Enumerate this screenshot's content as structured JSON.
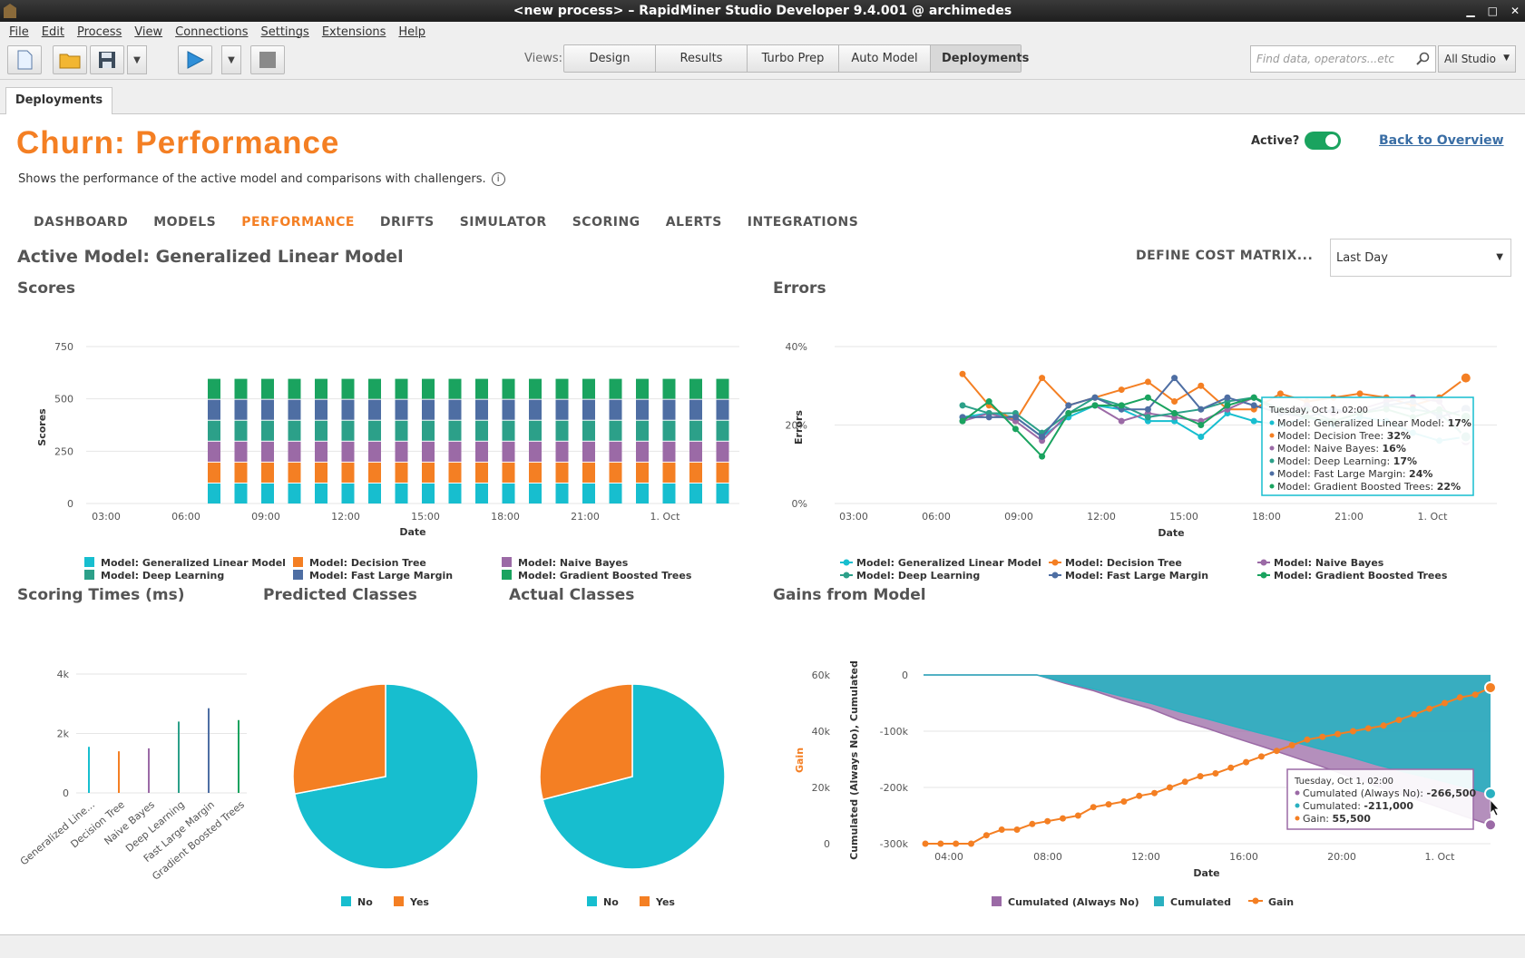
{
  "window": {
    "title": "<new process> – RapidMiner Studio Developer 9.4.001 @ archimedes"
  },
  "menu": [
    "File",
    "Edit",
    "Process",
    "View",
    "Connections",
    "Settings",
    "Extensions",
    "Help"
  ],
  "views": {
    "label": "Views:",
    "items": [
      "Design",
      "Results",
      "Turbo Prep",
      "Auto Model",
      "Deployments"
    ],
    "active": "Deployments"
  },
  "search": {
    "placeholder": "Find data, operators...etc",
    "scope": "All Studio"
  },
  "tab": {
    "label": "Deployments"
  },
  "page": {
    "title": "Churn: Performance",
    "subtitle": "Shows the performance of the active model and comparisons with challengers.",
    "active_label": "Active?",
    "active": true,
    "back_link": "Back to Overview"
  },
  "nav": [
    "DASHBOARD",
    "MODELS",
    "PERFORMANCE",
    "DRIFTS",
    "SIMULATOR",
    "SCORING",
    "ALERTS",
    "INTEGRATIONS"
  ],
  "nav_active": "PERFORMANCE",
  "active_model": "Active Model: Generalized Linear Model",
  "cost_matrix": "DEFINE COST MATRIX...",
  "time_range": "Last Day",
  "colors": {
    "glm": "#17becf",
    "dt": "#f47f23",
    "nb": "#9b6aa6",
    "dl": "#2ca089",
    "flm": "#4e6ea3",
    "gbt": "#1aa35f",
    "teal": "#2ab0c0",
    "purple": "#9b6aa6",
    "accent": "#f47f23"
  },
  "series_names": [
    "Model: Generalized Linear Model",
    "Model: Decision Tree",
    "Model: Naive Bayes",
    "Model: Deep Learning",
    "Model: Fast Large Margin",
    "Model: Gradient Boosted Trees"
  ],
  "chart_data": [
    {
      "id": "scores",
      "type": "bar",
      "title": "Scores",
      "xlabel": "Date",
      "ylabel": "Scores",
      "ylim": [
        0,
        750
      ],
      "yticks": [
        "0",
        "250",
        "500",
        "750"
      ],
      "xticks": [
        "03:00",
        "06:00",
        "09:00",
        "12:00",
        "15:00",
        "18:00",
        "21:00",
        "1. Oct"
      ],
      "stacked": true,
      "bars": 20,
      "series": [
        {
          "name": "Model: Generalized Linear Model",
          "value": 100
        },
        {
          "name": "Model: Decision Tree",
          "value": 100
        },
        {
          "name": "Model: Naive Bayes",
          "value": 100
        },
        {
          "name": "Model: Deep Learning",
          "value": 100
        },
        {
          "name": "Model: Fast Large Margin",
          "value": 100
        },
        {
          "name": "Model: Gradient Boosted Trees",
          "value": 100
        }
      ]
    },
    {
      "id": "errors",
      "type": "line",
      "title": "Errors",
      "xlabel": "Date",
      "ylabel": "Errors",
      "yticks": [
        "0%",
        "20%",
        "40%"
      ],
      "xticks": [
        "03:00",
        "06:00",
        "09:00",
        "12:00",
        "15:00",
        "18:00",
        "21:00",
        "1. Oct"
      ],
      "series": [
        {
          "name": "Model: Generalized Linear Model",
          "values": [
            22,
            23,
            22,
            17,
            22,
            25,
            24,
            21,
            21,
            17,
            23,
            21,
            20,
            22,
            20,
            22,
            21,
            18,
            16,
            17
          ]
        },
        {
          "name": "Model: Decision Tree",
          "values": [
            33,
            25,
            21,
            32,
            25,
            27,
            29,
            31,
            26,
            30,
            24,
            24,
            28,
            26,
            27,
            28,
            27,
            25,
            27,
            32
          ]
        },
        {
          "name": "Model: Naive Bayes",
          "values": [
            21,
            23,
            21,
            16,
            23,
            25,
            21,
            23,
            22,
            21,
            24,
            27,
            23,
            25,
            23,
            24,
            26,
            27,
            26,
            16
          ]
        },
        {
          "name": "Model: Deep Learning",
          "values": [
            25,
            23,
            23,
            18,
            23,
            27,
            25,
            22,
            23,
            24,
            26,
            27,
            23,
            24,
            21,
            23,
            25,
            24,
            23,
            17
          ]
        },
        {
          "name": "Model: Fast Large Margin",
          "values": [
            22,
            22,
            22,
            17,
            25,
            27,
            24,
            24,
            32,
            24,
            27,
            25,
            23,
            22,
            24,
            23,
            25,
            26,
            22,
            24
          ]
        },
        {
          "name": "Model: Gradient Boosted Trees",
          "values": [
            21,
            26,
            19,
            12,
            23,
            25,
            25,
            27,
            23,
            20,
            25,
            27,
            24,
            22,
            21,
            23,
            24,
            22,
            24,
            22
          ]
        }
      ],
      "tooltip": {
        "title": "Tuesday, Oct 1, 02:00",
        "rows": [
          {
            "label": "Model: Generalized Linear Model:",
            "value": "17%"
          },
          {
            "label": "Model: Decision Tree:",
            "value": "32%"
          },
          {
            "label": "Model: Naive Bayes:",
            "value": "16%"
          },
          {
            "label": "Model: Deep Learning:",
            "value": "17%"
          },
          {
            "label": "Model: Fast Large Margin:",
            "value": "24%"
          },
          {
            "label": "Model: Gradient Boosted Trees:",
            "value": "22%"
          }
        ]
      }
    },
    {
      "id": "scoring_times",
      "type": "bar",
      "title": "Scoring Times (ms)",
      "ylim": [
        0,
        4000
      ],
      "yticks": [
        "0",
        "2k",
        "4k"
      ],
      "categories": [
        "Generalized Line...",
        "Decision Tree",
        "Naive Bayes",
        "Deep Learning",
        "Fast Large Margin",
        "Gradient Boosted Trees"
      ],
      "values": [
        1550,
        1400,
        1500,
        2400,
        2850,
        2450
      ]
    },
    {
      "id": "predicted_classes",
      "type": "pie",
      "title": "Predicted Classes",
      "slices": [
        {
          "label": "No",
          "value": 72
        },
        {
          "label": "Yes",
          "value": 28
        }
      ]
    },
    {
      "id": "actual_classes",
      "type": "pie",
      "title": "Actual Classes",
      "slices": [
        {
          "label": "No",
          "value": 71
        },
        {
          "label": "Yes",
          "value": 29
        }
      ]
    },
    {
      "id": "gains",
      "type": "area",
      "title": "Gains from Model",
      "xlabel": "Date",
      "ylabel_left": "Gain",
      "ylabel_right": "Cumulated (Always No), Cumulated",
      "yticks_left": [
        "0",
        "20k",
        "40k",
        "60k"
      ],
      "yticks_right": [
        "-300k",
        "-200k",
        "-100k",
        "0"
      ],
      "xticks": [
        "04:00",
        "08:00",
        "12:00",
        "16:00",
        "20:00",
        "1. Oct"
      ],
      "series": [
        {
          "name": "Cumulated (Always No)",
          "values": [
            0,
            0,
            0,
            0,
            0,
            -15,
            -28,
            -45,
            -60,
            -80,
            -95,
            -112,
            -128,
            -145,
            -162,
            -180,
            -198,
            -215,
            -232,
            -250,
            -266.5
          ]
        },
        {
          "name": "Cumulated",
          "values": [
            0,
            0,
            0,
            0,
            0,
            -13,
            -25,
            -38,
            -50,
            -65,
            -78,
            -92,
            -105,
            -118,
            -132,
            -145,
            -160,
            -173,
            -185,
            -198,
            -211
          ]
        },
        {
          "name": "Gain",
          "values": [
            0,
            0,
            0,
            0,
            3,
            5,
            5,
            7,
            8,
            9,
            10,
            13,
            14,
            15,
            17,
            18,
            20,
            22,
            24,
            25,
            27,
            29,
            31,
            33,
            35,
            37,
            38,
            39,
            40,
            41,
            42,
            44,
            46,
            48,
            50,
            52,
            53,
            55.5
          ]
        }
      ],
      "tooltip": {
        "title": "Tuesday, Oct 1, 02:00",
        "rows": [
          {
            "label": "Cumulated (Always No):",
            "value": "-266,500"
          },
          {
            "label": "Cumulated:",
            "value": "-211,000"
          },
          {
            "label": "Gain:",
            "value": "55,500"
          }
        ]
      }
    }
  ],
  "pie_legend": [
    "No",
    "Yes"
  ]
}
